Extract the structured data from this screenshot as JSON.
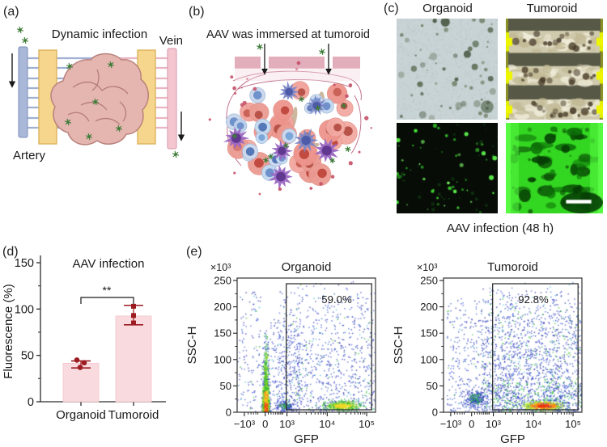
{
  "figure": {
    "panel_a": {
      "label": "(a)",
      "title": "Dynamic infection",
      "vein_label": "Vein",
      "artery_label": "Artery"
    },
    "panel_b": {
      "label": "(b)",
      "title": "AAV was immersed at tumoroid"
    },
    "panel_c": {
      "label": "(c)",
      "columns": [
        "Organoid",
        "Tumoroid"
      ],
      "caption": "AAV infection (48 h)"
    },
    "panel_d": {
      "label": "(d)"
    },
    "panel_e": {
      "label": "(e)"
    }
  },
  "colors": {
    "bar_fill": "#f9dade",
    "bar_edge": "#f3c6cb",
    "point_dark_red": "#9c1b21",
    "axis": "#2b2b2b",
    "artery_blue": "#a9b7d8",
    "vein_pink": "#f3c6d0",
    "device_yellow": "#f6d68c",
    "tumor_pink": "#e5b5b0",
    "virus_green": "#3f7c39",
    "gate": "#222222"
  },
  "chart_data": [
    {
      "type": "bar",
      "panel": "d",
      "title": "AAV infection",
      "ylabel": "Fluorescence (%)",
      "categories": [
        "Organoid",
        "Tumoroid"
      ],
      "values": [
        41.5,
        92.5
      ],
      "points": [
        [
          45,
          42,
          37
        ],
        [
          103,
          93,
          85
        ]
      ],
      "error_low": [
        36.5,
        83
      ],
      "error_high": [
        44,
        104
      ],
      "ylim": [
        0,
        150
      ],
      "yticks": [
        0,
        50,
        100,
        150
      ],
      "yticks_minor": [
        25,
        75,
        125
      ],
      "significance": "**",
      "marker_shapes": [
        "circle",
        "square"
      ]
    },
    {
      "type": "scatter",
      "subtype": "flow_cytometry",
      "panel": "e",
      "title": "Organoid",
      "xlabel": "GFP",
      "ylabel": "SSC-H",
      "y_scale_label": "×10³",
      "xtick_labels": [
        "−10³",
        "0",
        "10³",
        "10⁴",
        "10⁵"
      ],
      "ytick_values": [
        0,
        50,
        100,
        150,
        200,
        250
      ],
      "gate": {
        "percent_label": "59.0%"
      },
      "populations": [
        {
          "kind": "streak",
          "n": 1400,
          "fx": 0.205,
          "sx": 0.016
        },
        {
          "kind": "uniform",
          "n": 120,
          "fx": [
            0.0,
            0.17
          ],
          "fy": [
            0.05,
            1.0
          ],
          "pow": 0.8,
          "palette": "blue"
        },
        {
          "kind": "uniform",
          "n": 850,
          "fx": [
            0.3,
            1.0
          ],
          "fy": [
            0.02,
            1.0
          ],
          "pow": 0.72,
          "palette": "blue"
        },
        {
          "kind": "uniform",
          "n": 260,
          "fx": [
            0.24,
            0.45
          ],
          "fy": [
            0.3,
            1.0
          ],
          "pow": 0.8,
          "palette": "blue"
        },
        {
          "kind": "cluster",
          "n": 520,
          "fx": 0.76,
          "fy": 0.95,
          "sx": 0.11,
          "sy": 0.032,
          "palette": "warm"
        },
        {
          "kind": "cluster",
          "n": 150,
          "fx": 0.34,
          "fy": 0.95,
          "sx": 0.05,
          "sy": 0.03,
          "palette": "cool"
        }
      ]
    },
    {
      "type": "scatter",
      "subtype": "flow_cytometry",
      "panel": "e",
      "title": "Tumoroid",
      "xlabel": "GFP",
      "ylabel": "SSC-H",
      "y_scale_label": "×10³",
      "xtick_labels": [
        "−10³",
        "0",
        "10³",
        "10⁴",
        "10⁵"
      ],
      "ytick_values": [
        0,
        50,
        100,
        150,
        200,
        250
      ],
      "gate": {
        "percent_label": "92.8%"
      },
      "populations": [
        {
          "kind": "uniform",
          "n": 1750,
          "fx": [
            0.28,
            1.0
          ],
          "fy": [
            0.03,
            1.0
          ],
          "pow": 0.6,
          "palette": "bluegreen"
        },
        {
          "kind": "uniform",
          "n": 300,
          "fx": [
            0.02,
            0.3
          ],
          "fy": [
            0.15,
            1.0
          ],
          "pow": 0.8,
          "palette": "blue"
        },
        {
          "kind": "cluster",
          "n": 680,
          "fx": 0.72,
          "fy": 0.95,
          "sx": 0.12,
          "sy": 0.03,
          "palette": "hot"
        },
        {
          "kind": "cluster",
          "n": 280,
          "fx": 0.23,
          "fy": 0.9,
          "sx": 0.06,
          "sy": 0.055,
          "palette": "cool"
        },
        {
          "kind": "uniform",
          "n": 200,
          "fx": [
            0.3,
            1.0
          ],
          "fy": [
            0.78,
            1.0
          ],
          "pow": 0.9,
          "palette": "bluegreen"
        }
      ]
    }
  ],
  "illustrations": {
    "a": {
      "viruses": [
        [
          25,
          37
        ],
        [
          31,
          50
        ],
        [
          86,
          82
        ],
        [
          137,
          80
        ],
        [
          118,
          126
        ],
        [
          84,
          151
        ],
        [
          110,
          169
        ],
        [
          147,
          159
        ],
        [
          217,
          191
        ]
      ]
    },
    "b": {
      "seed": 7,
      "cells": {
        "salmon": 26,
        "blue": 14,
        "purple": 4,
        "slate": 3,
        "spindle": 6,
        "virus": 9,
        "red_dot": 18
      },
      "fixed_viruses": [
        [
          93,
          58
        ],
        [
          170,
          64
        ]
      ]
    },
    "c": {
      "organoid_bf": {
        "bg": "#c8d3d5",
        "spot_colors": [
          "#5d6e55",
          "#46553f",
          "#6b7a60"
        ],
        "spots": 58
      },
      "tumoroid_bf": {
        "dark": "#575846",
        "light": "#cfc9ad",
        "white": "#efecd9",
        "spot": "#4a3e2b",
        "yellow": "#e3ef00",
        "edge": "#8d9226",
        "bands": [
          [
            0.12,
            0.34
          ],
          [
            0.47,
            0.66
          ],
          [
            0.8,
            1.0
          ]
        ]
      },
      "organoid_fl": {
        "bg": "#070c07",
        "dot_colors": [
          "#46e436",
          "#2aa824",
          "#77f262"
        ],
        "dots": 46
      },
      "tumoroid_fl": {
        "bg": "#33d621",
        "bright": "#58fa43",
        "dark_colors": [
          "#0c6e08",
          "#0a4f06",
          "#063d04"
        ],
        "scalebar": "#ffffff"
      }
    }
  }
}
